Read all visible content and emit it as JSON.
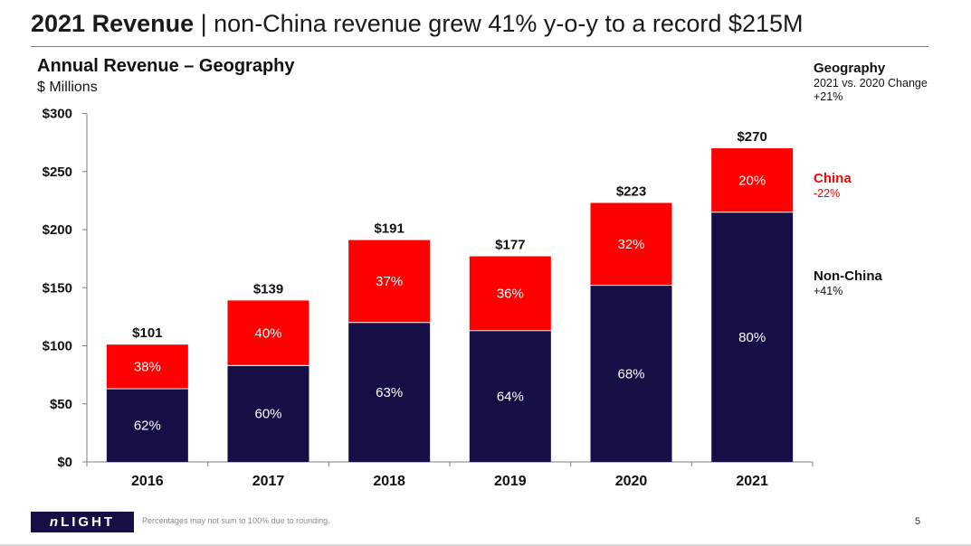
{
  "slide": {
    "title_bold": "2021 Revenue",
    "title_rest": " | non-China revenue grew 41% y-o-y to a record $215M",
    "footnote": "Percentages may not sum to 100% due to rounding.",
    "page_number": "5",
    "logo": {
      "prefix": "n",
      "rest": "LIGHT"
    }
  },
  "legend": {
    "heading": "Geography",
    "comparison": "2021 vs. 2020 Change",
    "total_change": "+21%",
    "china_label": "China",
    "china_change": "-22%",
    "nonchina_label": "Non-China",
    "nonchina_change": "+41%"
  },
  "colors": {
    "china": "#ff0000",
    "nonchina": "#150f45",
    "axis": "#7f7f7f"
  },
  "chart_data": {
    "type": "bar",
    "stacked": true,
    "title": "Annual Revenue – Geography",
    "subtitle": "$ Millions",
    "categories": [
      "2016",
      "2017",
      "2018",
      "2019",
      "2020",
      "2021"
    ],
    "ylim": [
      0,
      300
    ],
    "yticks": [
      0,
      50,
      100,
      150,
      200,
      250,
      300
    ],
    "ytick_labels": [
      "$0",
      "$50",
      "$100",
      "$150",
      "$200",
      "$250",
      "$300"
    ],
    "grid": false,
    "series": [
      {
        "name": "Non-China",
        "values": [
          63,
          83,
          120,
          113,
          152,
          215
        ],
        "labels": [
          "62%",
          "60%",
          "63%",
          "64%",
          "68%",
          "80%"
        ]
      },
      {
        "name": "China",
        "values": [
          38,
          56,
          71,
          64,
          71,
          55
        ],
        "labels": [
          "38%",
          "40%",
          "37%",
          "36%",
          "32%",
          "20%"
        ]
      }
    ],
    "totals": [
      101,
      139,
      191,
      177,
      223,
      270
    ],
    "total_labels": [
      "$101",
      "$139",
      "$191",
      "$177",
      "$223",
      "$270"
    ]
  }
}
